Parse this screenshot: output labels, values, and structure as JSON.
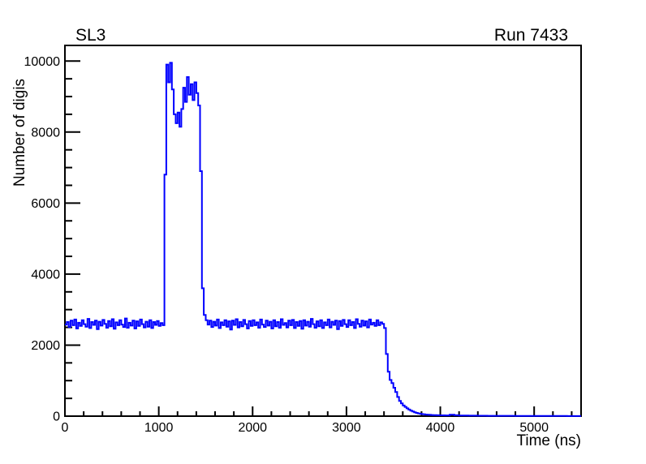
{
  "page": {
    "background": "#ffffff",
    "text_color": "#000000"
  },
  "chart_data": {
    "type": "line",
    "style": "histogram-step",
    "title": "SL3",
    "corner_label": "Run 7433",
    "xlabel": "Time (ns)",
    "ylabel": "Number of digis",
    "xlim": [
      0,
      5500
    ],
    "ylim": [
      0,
      10440
    ],
    "x_ticks": [
      0,
      1000,
      2000,
      3000,
      4000,
      5000
    ],
    "x_minor_step": 200,
    "y_ticks": [
      0,
      2000,
      4000,
      6000,
      8000,
      10000
    ],
    "y_minor_step": 500,
    "grid": false,
    "legend": "none",
    "line_color": "#0000ff",
    "frame_color": "#000000",
    "series": [
      {
        "name": "Number of digis vs time",
        "points": [
          [
            0,
            2580
          ],
          [
            20,
            2650
          ],
          [
            40,
            2510
          ],
          [
            60,
            2690
          ],
          [
            80,
            2560
          ],
          [
            100,
            2720
          ],
          [
            120,
            2470
          ],
          [
            140,
            2630
          ],
          [
            160,
            2540
          ],
          [
            180,
            2700
          ],
          [
            200,
            2590
          ],
          [
            220,
            2520
          ],
          [
            240,
            2740
          ],
          [
            260,
            2480
          ],
          [
            280,
            2650
          ],
          [
            300,
            2570
          ],
          [
            320,
            2690
          ],
          [
            340,
            2450
          ],
          [
            360,
            2660
          ],
          [
            380,
            2550
          ],
          [
            400,
            2710
          ],
          [
            420,
            2600
          ],
          [
            440,
            2490
          ],
          [
            460,
            2680
          ],
          [
            480,
            2530
          ],
          [
            500,
            2730
          ],
          [
            520,
            2460
          ],
          [
            540,
            2640
          ],
          [
            560,
            2560
          ],
          [
            580,
            2700
          ],
          [
            600,
            2580
          ],
          [
            620,
            2510
          ],
          [
            640,
            2750
          ],
          [
            660,
            2490
          ],
          [
            680,
            2630
          ],
          [
            700,
            2550
          ],
          [
            720,
            2690
          ],
          [
            740,
            2470
          ],
          [
            760,
            2670
          ],
          [
            780,
            2540
          ],
          [
            800,
            2720
          ],
          [
            820,
            2590
          ],
          [
            840,
            2500
          ],
          [
            860,
            2660
          ],
          [
            880,
            2520
          ],
          [
            900,
            2700
          ],
          [
            920,
            2480
          ],
          [
            940,
            2650
          ],
          [
            960,
            2570
          ],
          [
            980,
            2680
          ],
          [
            1000,
            2540
          ],
          [
            1020,
            2620
          ],
          [
            1040,
            2560
          ],
          [
            1060,
            6800
          ],
          [
            1080,
            9900
          ],
          [
            1100,
            9400
          ],
          [
            1120,
            9950
          ],
          [
            1140,
            9200
          ],
          [
            1160,
            8500
          ],
          [
            1180,
            8250
          ],
          [
            1200,
            8550
          ],
          [
            1220,
            8150
          ],
          [
            1240,
            8650
          ],
          [
            1260,
            9250
          ],
          [
            1280,
            8850
          ],
          [
            1300,
            9550
          ],
          [
            1320,
            9050
          ],
          [
            1340,
            9350
          ],
          [
            1360,
            8900
          ],
          [
            1380,
            9400
          ],
          [
            1400,
            9100
          ],
          [
            1420,
            8750
          ],
          [
            1440,
            6900
          ],
          [
            1460,
            3600
          ],
          [
            1480,
            2850
          ],
          [
            1500,
            2700
          ],
          [
            1520,
            2580
          ],
          [
            1540,
            2690
          ],
          [
            1560,
            2510
          ],
          [
            1580,
            2660
          ],
          [
            1600,
            2550
          ],
          [
            1620,
            2720
          ],
          [
            1640,
            2480
          ],
          [
            1660,
            2640
          ],
          [
            1680,
            2560
          ],
          [
            1700,
            2700
          ],
          [
            1720,
            2520
          ],
          [
            1740,
            2670
          ],
          [
            1760,
            2440
          ],
          [
            1780,
            2690
          ],
          [
            1800,
            2570
          ],
          [
            1820,
            2730
          ],
          [
            1840,
            2500
          ],
          [
            1860,
            2650
          ],
          [
            1880,
            2530
          ],
          [
            1900,
            2710
          ],
          [
            1920,
            2590
          ],
          [
            1940,
            2470
          ],
          [
            1960,
            2680
          ],
          [
            1980,
            2540
          ],
          [
            2000,
            2700
          ],
          [
            2020,
            2560
          ],
          [
            2040,
            2640
          ],
          [
            2060,
            2490
          ],
          [
            2080,
            2720
          ],
          [
            2100,
            2580
          ],
          [
            2120,
            2510
          ],
          [
            2140,
            2690
          ],
          [
            2160,
            2550
          ],
          [
            2180,
            2660
          ],
          [
            2200,
            2470
          ],
          [
            2220,
            2700
          ],
          [
            2240,
            2530
          ],
          [
            2260,
            2650
          ],
          [
            2280,
            2490
          ],
          [
            2300,
            2730
          ],
          [
            2320,
            2570
          ],
          [
            2340,
            2620
          ],
          [
            2360,
            2500
          ],
          [
            2380,
            2690
          ],
          [
            2400,
            2560
          ],
          [
            2420,
            2710
          ],
          [
            2440,
            2480
          ],
          [
            2460,
            2650
          ],
          [
            2480,
            2540
          ],
          [
            2500,
            2680
          ],
          [
            2520,
            2460
          ],
          [
            2540,
            2700
          ],
          [
            2560,
            2550
          ],
          [
            2580,
            2660
          ],
          [
            2600,
            2520
          ],
          [
            2620,
            2740
          ],
          [
            2640,
            2590
          ],
          [
            2660,
            2490
          ],
          [
            2680,
            2670
          ],
          [
            2700,
            2530
          ],
          [
            2720,
            2700
          ],
          [
            2740,
            2480
          ],
          [
            2760,
            2640
          ],
          [
            2780,
            2560
          ],
          [
            2800,
            2720
          ],
          [
            2820,
            2500
          ],
          [
            2840,
            2660
          ],
          [
            2860,
            2570
          ],
          [
            2880,
            2690
          ],
          [
            2900,
            2450
          ],
          [
            2920,
            2680
          ],
          [
            2940,
            2540
          ],
          [
            2960,
            2710
          ],
          [
            2980,
            2590
          ],
          [
            3000,
            2510
          ],
          [
            3020,
            2700
          ],
          [
            3040,
            2560
          ],
          [
            3060,
            2650
          ],
          [
            3080,
            2480
          ],
          [
            3100,
            2730
          ],
          [
            3120,
            2600
          ],
          [
            3140,
            2520
          ],
          [
            3160,
            2690
          ],
          [
            3180,
            2550
          ],
          [
            3200,
            2670
          ],
          [
            3220,
            2500
          ],
          [
            3240,
            2720
          ],
          [
            3260,
            2580
          ],
          [
            3280,
            2630
          ],
          [
            3300,
            2540
          ],
          [
            3320,
            2700
          ],
          [
            3340,
            2560
          ],
          [
            3360,
            2640
          ],
          [
            3380,
            2600
          ],
          [
            3400,
            2480
          ],
          [
            3420,
            1750
          ],
          [
            3440,
            1250
          ],
          [
            3460,
            1020
          ],
          [
            3480,
            930
          ],
          [
            3500,
            800
          ],
          [
            3520,
            680
          ],
          [
            3540,
            540
          ],
          [
            3560,
            430
          ],
          [
            3580,
            360
          ],
          [
            3600,
            300
          ],
          [
            3620,
            260
          ],
          [
            3640,
            220
          ],
          [
            3660,
            185
          ],
          [
            3680,
            155
          ],
          [
            3700,
            130
          ],
          [
            3720,
            110
          ],
          [
            3740,
            92
          ],
          [
            3760,
            78
          ],
          [
            3780,
            66
          ],
          [
            3800,
            56
          ],
          [
            3820,
            50
          ],
          [
            3840,
            44
          ],
          [
            3860,
            40
          ],
          [
            3880,
            36
          ],
          [
            3900,
            32
          ],
          [
            3920,
            30
          ],
          [
            3940,
            28
          ],
          [
            3960,
            26
          ],
          [
            3980,
            24
          ],
          [
            4000,
            22
          ],
          [
            4050,
            20
          ],
          [
            4100,
            40
          ],
          [
            4150,
            26
          ],
          [
            4200,
            18
          ],
          [
            4250,
            16
          ],
          [
            4300,
            14
          ],
          [
            4350,
            13
          ],
          [
            4400,
            12
          ],
          [
            4450,
            11
          ],
          [
            4500,
            10
          ],
          [
            4550,
            10
          ],
          [
            4600,
            9
          ],
          [
            4650,
            9
          ],
          [
            4700,
            8
          ],
          [
            4750,
            8
          ],
          [
            4800,
            7
          ],
          [
            4850,
            7
          ],
          [
            4900,
            6
          ],
          [
            4950,
            6
          ],
          [
            5000,
            5
          ],
          [
            5050,
            5
          ],
          [
            5100,
            5
          ],
          [
            5150,
            4
          ],
          [
            5200,
            4
          ],
          [
            5250,
            4
          ],
          [
            5300,
            4
          ],
          [
            5350,
            3
          ],
          [
            5400,
            3
          ],
          [
            5450,
            3
          ],
          [
            5500,
            3
          ]
        ]
      }
    ]
  }
}
